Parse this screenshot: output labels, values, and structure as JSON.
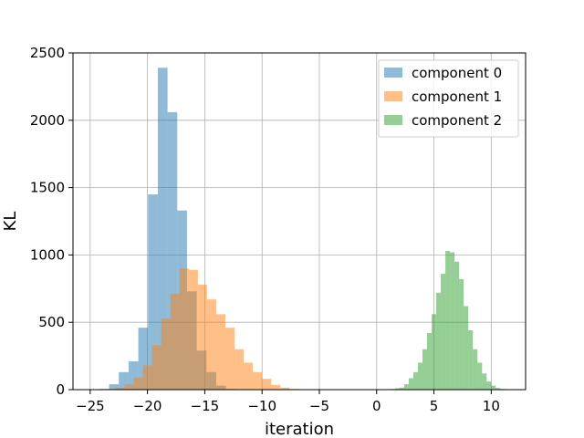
{
  "chart_data": {
    "type": "histogram",
    "xlabel": "iteration",
    "ylabel": "KL",
    "xlim": [
      -26.5,
      13
    ],
    "ylim": [
      0,
      2500
    ],
    "xticks": [
      -25,
      -20,
      -15,
      -10,
      -5,
      0,
      5,
      10
    ],
    "yticks": [
      0,
      500,
      1000,
      1500,
      2000,
      2500
    ],
    "grid": true,
    "legend_position": "top-right",
    "colors": [
      "#1f77b4",
      "#ff7f0e",
      "#2ca02c"
    ],
    "alpha": 0.5,
    "series": [
      {
        "name": "component 0",
        "bins": [
          [
            -24.2,
            -23.35,
            5
          ],
          [
            -23.35,
            -22.5,
            40
          ],
          [
            -22.5,
            -21.65,
            130
          ],
          [
            -21.65,
            -20.8,
            210
          ],
          [
            -20.8,
            -19.95,
            460
          ],
          [
            -19.95,
            -19.1,
            1450
          ],
          [
            -19.1,
            -18.25,
            2390
          ],
          [
            -18.25,
            -17.4,
            2060
          ],
          [
            -17.4,
            -16.55,
            1330
          ],
          [
            -16.55,
            -15.7,
            730
          ],
          [
            -15.7,
            -14.85,
            290
          ],
          [
            -14.85,
            -14.0,
            130
          ],
          [
            -14.0,
            -13.15,
            30
          ],
          [
            -13.15,
            -12.3,
            5
          ]
        ]
      },
      {
        "name": "component 1",
        "bins": [
          [
            -23.6,
            -22.8,
            5
          ],
          [
            -22.8,
            -22.0,
            15
          ],
          [
            -22.0,
            -21.2,
            40
          ],
          [
            -21.2,
            -20.4,
            90
          ],
          [
            -20.4,
            -19.6,
            180
          ],
          [
            -19.6,
            -18.8,
            330
          ],
          [
            -18.8,
            -18.0,
            530
          ],
          [
            -18.0,
            -17.2,
            710
          ],
          [
            -17.2,
            -16.4,
            900
          ],
          [
            -16.4,
            -15.6,
            890
          ],
          [
            -15.6,
            -14.8,
            780
          ],
          [
            -14.8,
            -14.0,
            670
          ],
          [
            -14.0,
            -13.2,
            560
          ],
          [
            -13.2,
            -12.4,
            460
          ],
          [
            -12.4,
            -11.6,
            300
          ],
          [
            -11.6,
            -10.8,
            200
          ],
          [
            -10.8,
            -10.0,
            130
          ],
          [
            -10.0,
            -9.2,
            80
          ],
          [
            -9.2,
            -8.4,
            35
          ],
          [
            -8.4,
            -7.6,
            15
          ],
          [
            -7.6,
            -6.8,
            5
          ]
        ]
      },
      {
        "name": "component 2",
        "bins": [
          [
            1.2,
            1.6,
            5
          ],
          [
            1.6,
            2.0,
            10
          ],
          [
            2.0,
            2.4,
            15
          ],
          [
            2.4,
            2.8,
            40
          ],
          [
            2.8,
            3.2,
            85
          ],
          [
            3.2,
            3.6,
            130
          ],
          [
            3.6,
            4.0,
            200
          ],
          [
            4.0,
            4.4,
            300
          ],
          [
            4.4,
            4.8,
            420
          ],
          [
            4.8,
            5.2,
            560
          ],
          [
            5.2,
            5.6,
            720
          ],
          [
            5.6,
            6.0,
            860
          ],
          [
            6.0,
            6.4,
            1030
          ],
          [
            6.4,
            6.8,
            1020
          ],
          [
            6.8,
            7.2,
            950
          ],
          [
            7.2,
            7.6,
            820
          ],
          [
            7.6,
            8.0,
            620
          ],
          [
            8.0,
            8.4,
            440
          ],
          [
            8.4,
            8.8,
            300
          ],
          [
            8.8,
            9.2,
            200
          ],
          [
            9.2,
            9.6,
            120
          ],
          [
            9.6,
            10.0,
            60
          ],
          [
            10.0,
            10.4,
            30
          ],
          [
            10.4,
            10.8,
            12
          ],
          [
            10.8,
            11.2,
            5
          ]
        ]
      }
    ]
  }
}
